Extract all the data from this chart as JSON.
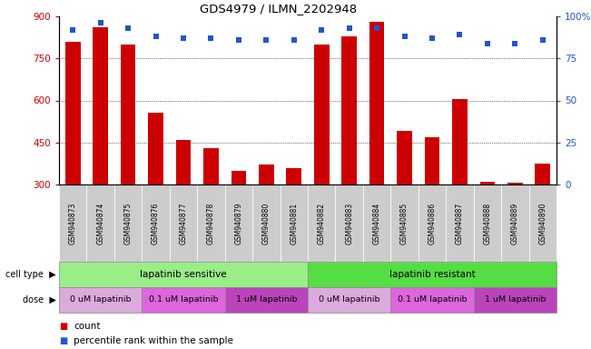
{
  "title": "GDS4979 / ILMN_2202948",
  "samples": [
    "GSM940873",
    "GSM940874",
    "GSM940875",
    "GSM940876",
    "GSM940877",
    "GSM940878",
    "GSM940879",
    "GSM940880",
    "GSM940881",
    "GSM940882",
    "GSM940883",
    "GSM940884",
    "GSM940885",
    "GSM940886",
    "GSM940887",
    "GSM940888",
    "GSM940889",
    "GSM940890"
  ],
  "counts": [
    810,
    860,
    800,
    555,
    460,
    430,
    350,
    370,
    360,
    800,
    830,
    880,
    490,
    470,
    605,
    310,
    305,
    375
  ],
  "percentiles": [
    92,
    96,
    93,
    88,
    87,
    87,
    86,
    86,
    86,
    92,
    93,
    93,
    88,
    87,
    89,
    84,
    84,
    86
  ],
  "ylim_left": [
    300,
    900
  ],
  "ylim_right": [
    0,
    100
  ],
  "yticks_left": [
    300,
    450,
    600,
    750,
    900
  ],
  "yticks_right": [
    0,
    25,
    50,
    75,
    100
  ],
  "bar_color": "#cc0000",
  "dot_color": "#2255cc",
  "bg_color": "#ffffff",
  "tick_color_left": "#cc0000",
  "tick_color_right": "#2255cc",
  "xtick_bg": "#cccccc",
  "cell_type_colors": [
    "#99ee88",
    "#55dd44"
  ],
  "cell_types": [
    {
      "label": "lapatinib sensitive",
      "start": 0,
      "end": 9
    },
    {
      "label": "lapatinib resistant",
      "start": 9,
      "end": 18
    }
  ],
  "doses": [
    {
      "label": "0 uM lapatinib",
      "start": 0,
      "end": 3,
      "color": "#ddaadd"
    },
    {
      "label": "0.1 uM lapatinib",
      "start": 3,
      "end": 6,
      "color": "#dd66dd"
    },
    {
      "label": "1 uM lapatinib",
      "start": 6,
      "end": 9,
      "color": "#bb44bb"
    },
    {
      "label": "0 uM lapatinib",
      "start": 9,
      "end": 12,
      "color": "#ddaadd"
    },
    {
      "label": "0.1 uM lapatinib",
      "start": 12,
      "end": 15,
      "color": "#dd66dd"
    },
    {
      "label": "1 uM lapatinib",
      "start": 15,
      "end": 18,
      "color": "#bb44bb"
    }
  ],
  "label_cell_type": "cell type",
  "label_dose": "dose",
  "legend_count": "count",
  "legend_pct": "percentile rank within the sample"
}
